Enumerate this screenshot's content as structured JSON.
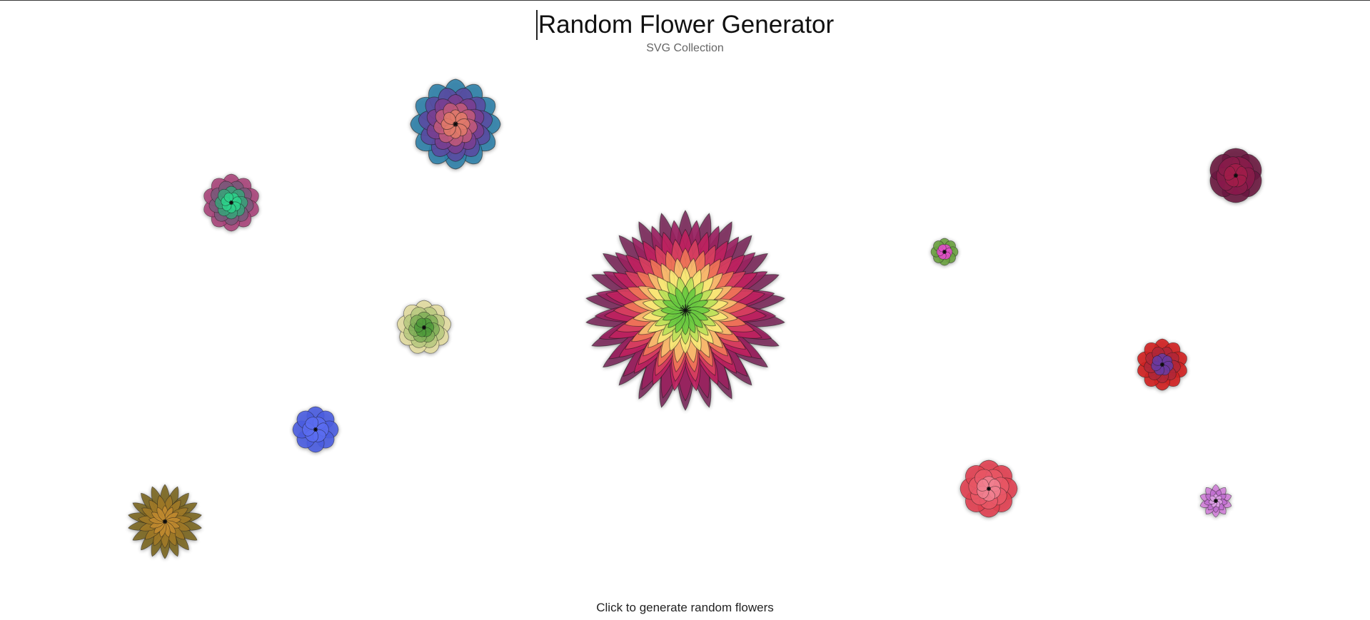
{
  "header": {
    "title": "Random Flower Generator",
    "subtitle": "SVG Collection"
  },
  "footer": {
    "hint": "Click to generate random flowers"
  },
  "flowers": [
    {
      "name": "flower-teal-violet",
      "palette": [
        "#2f7fa8",
        "#5b4aa0",
        "#7a3f8f",
        "#c05a7a",
        "#e07a6a"
      ]
    },
    {
      "name": "flower-rose-green",
      "palette": [
        "#a8447a",
        "#7a5a7a",
        "#3aa07a",
        "#2dd08a"
      ]
    },
    {
      "name": "flower-khaki-green",
      "palette": [
        "#e2dca0",
        "#b8c880",
        "#7fae58",
        "#4f9a3a"
      ]
    },
    {
      "name": "flower-blue",
      "palette": [
        "#4a5ce0",
        "#5a6cf0"
      ]
    },
    {
      "name": "flower-ochre",
      "palette": [
        "#7a6420",
        "#a07a28",
        "#c08a30"
      ]
    },
    {
      "name": "flower-magenta-large",
      "palette": [
        "#7a2a5a",
        "#9a2060",
        "#c02060",
        "#d84060",
        "#f07858",
        "#f8c070",
        "#f8ec78",
        "#b8e058",
        "#68c840"
      ]
    },
    {
      "name": "flower-green-pink-tiny",
      "palette": [
        "#6aa040",
        "#e050c8"
      ]
    },
    {
      "name": "flower-maroon",
      "palette": [
        "#6a1a40",
        "#8a1a4a",
        "#a0204a"
      ]
    },
    {
      "name": "flower-red-violet",
      "palette": [
        "#d02020",
        "#b02838",
        "#6a3aa0"
      ]
    },
    {
      "name": "flower-coral",
      "palette": [
        "#e04050",
        "#e85868",
        "#f08090"
      ]
    },
    {
      "name": "flower-lilac",
      "palette": [
        "#d080d8",
        "#c070d0",
        "#e0a0e8"
      ]
    }
  ]
}
